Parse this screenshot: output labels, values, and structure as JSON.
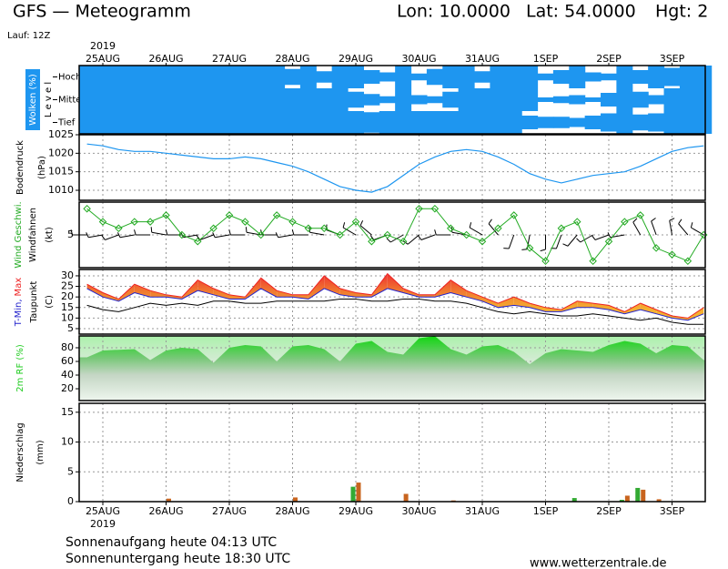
{
  "header": {
    "title": "GFS — Meteogramm",
    "lon": "Lon: 10.0000",
    "lat": "Lat: 54.0000",
    "hgt": "Hgt: 2",
    "run": "Lauf: 12Z"
  },
  "x_axis": {
    "year": "2019",
    "categories": [
      null,
      "25AUG",
      null,
      null,
      null,
      "26AUG",
      null,
      null,
      null,
      "27AUG",
      null,
      null,
      null,
      "28AUG",
      null,
      null,
      null,
      "29AUG",
      null,
      null,
      null,
      "30AUG",
      null,
      null,
      null,
      "31AUG",
      null,
      null,
      null,
      "1SEP",
      null,
      null,
      null,
      "2SEP",
      null,
      null,
      null,
      "3SEP",
      null,
      null
    ]
  },
  "chart_data": [
    {
      "type": "cloud",
      "title": "Wolken (%)",
      "ylabel": "L e v e l",
      "series": [
        {
          "name": "Hoch",
          "color": "#1e96f0",
          "values": [
            100,
            100,
            100,
            100,
            100,
            100,
            100,
            100,
            100,
            100,
            100,
            100,
            100,
            70,
            100,
            50,
            100,
            100,
            60,
            40,
            100,
            30,
            70,
            100,
            100,
            50,
            100,
            100,
            100,
            30,
            60,
            100,
            40,
            30,
            100,
            60,
            100,
            80,
            100,
            100
          ]
        },
        {
          "name": "Mittel",
          "color": "#1e96f0",
          "values": [
            100,
            100,
            100,
            100,
            100,
            100,
            100,
            100,
            100,
            100,
            100,
            100,
            100,
            100,
            100,
            100,
            100,
            70,
            50,
            30,
            100,
            40,
            30,
            70,
            100,
            100,
            100,
            100,
            100,
            20,
            30,
            40,
            20,
            60,
            100,
            70,
            40,
            100,
            100,
            100
          ]
        },
        {
          "name": "Tief",
          "color": "#1e96f0",
          "values": [
            100,
            100,
            100,
            100,
            100,
            100,
            100,
            100,
            100,
            100,
            100,
            100,
            100,
            100,
            100,
            100,
            100,
            100,
            90,
            100,
            100,
            100,
            100,
            100,
            100,
            100,
            100,
            100,
            60,
            50,
            50,
            40,
            60,
            80,
            100,
            70,
            80,
            100,
            100,
            100
          ]
        }
      ]
    },
    {
      "type": "line",
      "ylabel": "(hPa)",
      "ylim": [
        1007.3,
        1025
      ],
      "yticks": [
        1010,
        1015,
        1020,
        1025
      ],
      "grid": true,
      "series": [
        {
          "name": "Bodendruck",
          "color": "#1e96f0",
          "values": [
            1022.5,
            1022,
            1021,
            1020.5,
            1020.5,
            1020,
            1019.5,
            1019,
            1018.5,
            1018.5,
            1019,
            1018.5,
            1017.5,
            1016.5,
            1015,
            1013,
            1011,
            1010,
            1009.5,
            1011,
            1014,
            1017,
            1019,
            1020.5,
            1021,
            1020.5,
            1019,
            1017,
            1014.5,
            1013,
            1012,
            1013,
            1014,
            1014.5,
            1015,
            1016.5,
            1018.5,
            1020.5,
            1021.5,
            1022
          ]
        }
      ]
    },
    {
      "type": "wind",
      "ylabel": "(kt)",
      "ylim": [
        0,
        10
      ],
      "yticks": [
        5
      ],
      "grid": true,
      "series": [
        {
          "name": "Wind Geschwi.",
          "color": "#22aa22",
          "values": [
            9,
            7,
            6,
            7,
            7,
            8,
            5,
            4,
            6,
            8,
            7,
            5,
            8,
            7,
            6,
            6,
            5,
            7,
            4,
            5,
            4,
            9,
            9,
            6,
            5,
            4,
            6,
            8,
            3,
            1,
            6,
            7,
            1,
            4,
            7,
            8,
            3,
            2,
            1,
            5
          ]
        }
      ],
      "barbs": {
        "name": "Windfahnen",
        "color": "#000000",
        "values": [
          270,
          260,
          250,
          260,
          270,
          280,
          270,
          260,
          250,
          260,
          270,
          280,
          270,
          260,
          270,
          280,
          290,
          300,
          310,
          250,
          240,
          230,
          250,
          270,
          280,
          300,
          320,
          200,
          190,
          180,
          200,
          220,
          240,
          250,
          260,
          330,
          340,
          350,
          320,
          300
        ]
      }
    },
    {
      "type": "temperature",
      "ylabel": "(C)",
      "ylim": [
        2.4,
        33
      ],
      "yticks": [
        5,
        10,
        15,
        20,
        25,
        30
      ],
      "grid": true,
      "series": [
        {
          "name": "T-Min,",
          "color": "#2222cc",
          "values": [
            24,
            20,
            18,
            22,
            20,
            20,
            19,
            23,
            21,
            19,
            19,
            24,
            20,
            20,
            19,
            24,
            21,
            20,
            20,
            24,
            22,
            20,
            20,
            22,
            20,
            18,
            15,
            16,
            15,
            13,
            13,
            15,
            15,
            14,
            12,
            14,
            12,
            10,
            9,
            12
          ]
        },
        {
          "name": "Max",
          "color": "#ee2222",
          "values": [
            26,
            22,
            19,
            26,
            23,
            21,
            20,
            28,
            24,
            21,
            20,
            29,
            23,
            21,
            21,
            30,
            24,
            22,
            21,
            31,
            24,
            21,
            21,
            28,
            23,
            20,
            17,
            20,
            17,
            15,
            14,
            18,
            17,
            16,
            13,
            17,
            14,
            11,
            10,
            15
          ]
        },
        {
          "name": "Taupunkt",
          "color": "#000000",
          "values": [
            16,
            14,
            13,
            15,
            17,
            16,
            17,
            16,
            18,
            18,
            17,
            17,
            18,
            18,
            18,
            18,
            19,
            19,
            18,
            18,
            19,
            19,
            18,
            18,
            17,
            15,
            13,
            12,
            13,
            12,
            11,
            11,
            12,
            11,
            10,
            9,
            10,
            8,
            7,
            7
          ]
        }
      ]
    },
    {
      "type": "area",
      "ylim": [
        2.7,
        97.3
      ],
      "yticks": [
        20,
        40,
        60,
        80
      ],
      "grid": true,
      "series": [
        {
          "name": "2m RF (%)",
          "color": "#22cc22",
          "values": [
            66,
            76,
            77,
            78,
            62,
            76,
            80,
            78,
            58,
            80,
            84,
            82,
            60,
            82,
            84,
            78,
            60,
            86,
            90,
            74,
            70,
            94,
            97,
            78,
            70,
            82,
            84,
            74,
            56,
            72,
            78,
            76,
            74,
            84,
            90,
            86,
            72,
            84,
            82,
            62
          ]
        }
      ]
    },
    {
      "type": "bar",
      "title": "Niederschlag",
      "ylabel": "(mm)",
      "ylim": [
        0,
        16.5
      ],
      "yticks": [
        0,
        5,
        10,
        15
      ],
      "grid": true,
      "series": [
        {
          "color": "#33aa33",
          "values": [
            0,
            0,
            0,
            0,
            0,
            0,
            0,
            0,
            0,
            0,
            0,
            0,
            0,
            0,
            0,
            0,
            0,
            2.5,
            0,
            0,
            0,
            0,
            0,
            0,
            0,
            0,
            0,
            0,
            0,
            0,
            0,
            0.6,
            0,
            0,
            0.3,
            2.3,
            0,
            0,
            0,
            0
          ]
        },
        {
          "color": "#c8641e",
          "values": [
            0,
            0,
            0,
            0,
            0,
            0.5,
            0,
            0,
            0,
            0,
            0,
            0,
            0,
            0.7,
            0,
            0,
            0,
            3.2,
            0,
            0,
            1.3,
            0,
            0,
            0.2,
            0,
            0,
            0,
            0,
            0,
            0,
            0,
            0,
            0,
            0,
            1.0,
            2.0,
            0.4,
            0,
            0,
            0
          ]
        }
      ]
    }
  ],
  "footer": {
    "sunrise": "Sonnenaufgang heute 04:13 UTC",
    "sunset": "Sonnenuntergang heute 18:30 UTC",
    "site": "www.wetterzentrale.de"
  }
}
